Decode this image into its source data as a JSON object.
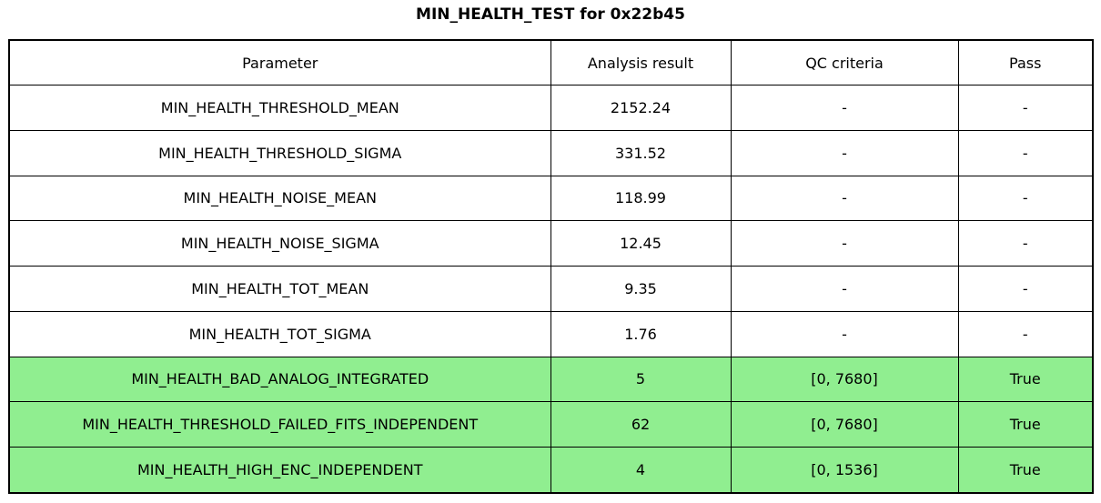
{
  "figure": {
    "title": "MIN_HEALTH_TEST for 0x22b45"
  },
  "colors": {
    "pass_row_bg": "#90ee90",
    "default_row_bg": "#ffffff",
    "border": "#000000",
    "text": "#000000"
  },
  "chart_data": {
    "type": "table",
    "title": "MIN_HEALTH_TEST for 0x22b45",
    "columns": [
      "Parameter",
      "Analysis result",
      "QC criteria",
      "Pass"
    ],
    "rows": [
      {
        "parameter": "MIN_HEALTH_THRESHOLD_MEAN",
        "analysis_result": "2152.24",
        "qc_criteria": "-",
        "pass": "-",
        "highlight": false
      },
      {
        "parameter": "MIN_HEALTH_THRESHOLD_SIGMA",
        "analysis_result": "331.52",
        "qc_criteria": "-",
        "pass": "-",
        "highlight": false
      },
      {
        "parameter": "MIN_HEALTH_NOISE_MEAN",
        "analysis_result": "118.99",
        "qc_criteria": "-",
        "pass": "-",
        "highlight": false
      },
      {
        "parameter": "MIN_HEALTH_NOISE_SIGMA",
        "analysis_result": "12.45",
        "qc_criteria": "-",
        "pass": "-",
        "highlight": false
      },
      {
        "parameter": "MIN_HEALTH_TOT_MEAN",
        "analysis_result": "9.35",
        "qc_criteria": "-",
        "pass": "-",
        "highlight": false
      },
      {
        "parameter": "MIN_HEALTH_TOT_SIGMA",
        "analysis_result": "1.76",
        "qc_criteria": "-",
        "pass": "-",
        "highlight": false
      },
      {
        "parameter": "MIN_HEALTH_BAD_ANALOG_INTEGRATED",
        "analysis_result": "5",
        "qc_criteria": "[0, 7680]",
        "pass": "True",
        "highlight": true
      },
      {
        "parameter": "MIN_HEALTH_THRESHOLD_FAILED_FITS_INDEPENDENT",
        "analysis_result": "62",
        "qc_criteria": "[0, 7680]",
        "pass": "True",
        "highlight": true
      },
      {
        "parameter": "MIN_HEALTH_HIGH_ENC_INDEPENDENT",
        "analysis_result": "4",
        "qc_criteria": "[0, 1536]",
        "pass": "True",
        "highlight": true
      }
    ],
    "layout": {
      "legend": "none",
      "grid": "full-borders",
      "highlight_meaning": "QC criteria applied and passed"
    }
  }
}
